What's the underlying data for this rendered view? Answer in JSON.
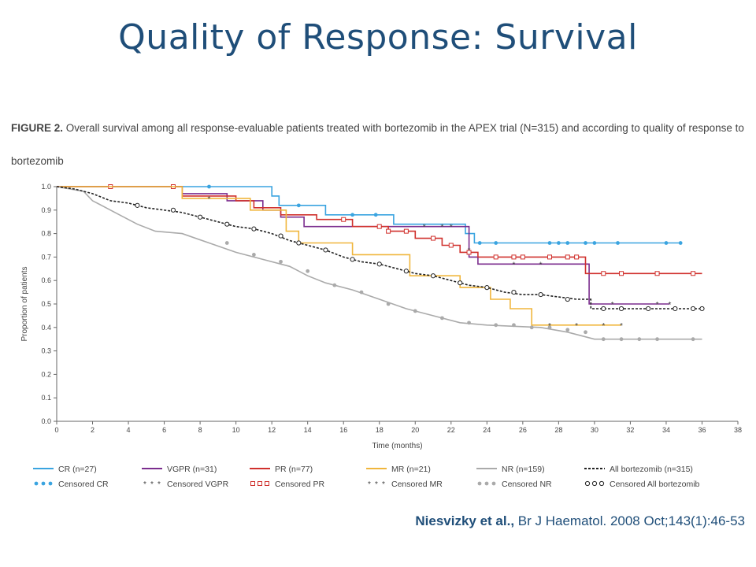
{
  "slide": {
    "title": "Quality of Response: Survival",
    "caption_label": "FIGURE 2.",
    "caption_text": "Overall survival among all response-evaluable patients treated with bortezomib in the APEX trial (N=315) and according to quality of response to bortezomib",
    "citation_authors": "Niesvizky et al.,",
    "citation_source": "Br J Haematol. 2008 Oct;143(1):46-53"
  },
  "chart_data": {
    "type": "line",
    "subtype": "kaplan-meier step",
    "xlabel": "Time (months)",
    "ylabel": "Proportion of patients",
    "xlim": [
      0,
      38
    ],
    "ylim": [
      0,
      1
    ],
    "xticks": [
      0,
      2,
      4,
      6,
      8,
      10,
      12,
      14,
      16,
      18,
      20,
      22,
      24,
      26,
      28,
      30,
      32,
      34,
      36,
      38
    ],
    "yticks": [
      0.0,
      0.1,
      0.2,
      0.3,
      0.4,
      0.5,
      0.6,
      0.7,
      0.8,
      0.9,
      1.0
    ],
    "grid": false,
    "legend_position": "bottom",
    "series": [
      {
        "name": "CR (n=27)",
        "censored_name": "Censored CR",
        "color": "#3aa4e0",
        "dash": "solid",
        "marker": "dot",
        "points": [
          [
            0,
            1.0
          ],
          [
            12.0,
            1.0
          ],
          [
            12.0,
            0.96
          ],
          [
            12.4,
            0.96
          ],
          [
            12.4,
            0.92
          ],
          [
            15.0,
            0.92
          ],
          [
            15.0,
            0.88
          ],
          [
            18.8,
            0.88
          ],
          [
            18.8,
            0.84
          ],
          [
            22.8,
            0.84
          ],
          [
            22.8,
            0.8
          ],
          [
            23.3,
            0.8
          ],
          [
            23.3,
            0.76
          ],
          [
            34.8,
            0.76
          ]
        ],
        "censored": [
          [
            3,
            1.0
          ],
          [
            8.5,
            1.0
          ],
          [
            13.5,
            0.92
          ],
          [
            16.5,
            0.88
          ],
          [
            17.8,
            0.88
          ],
          [
            23.6,
            0.76
          ],
          [
            24.5,
            0.76
          ],
          [
            27.5,
            0.76
          ],
          [
            28.0,
            0.76
          ],
          [
            28.5,
            0.76
          ],
          [
            29.5,
            0.76
          ],
          [
            30.0,
            0.76
          ],
          [
            31.3,
            0.76
          ],
          [
            34.0,
            0.76
          ],
          [
            34.8,
            0.76
          ]
        ]
      },
      {
        "name": "VGPR (n=31)",
        "censored_name": "Censored VGPR",
        "color": "#7b2d8e",
        "dash": "solid",
        "marker": "star",
        "points": [
          [
            0,
            1.0
          ],
          [
            7.0,
            1.0
          ],
          [
            7.0,
            0.97
          ],
          [
            9.5,
            0.97
          ],
          [
            9.5,
            0.94
          ],
          [
            11.5,
            0.94
          ],
          [
            11.5,
            0.9
          ],
          [
            12.5,
            0.9
          ],
          [
            12.5,
            0.87
          ],
          [
            13.8,
            0.87
          ],
          [
            13.8,
            0.83
          ],
          [
            23.0,
            0.83
          ],
          [
            23.0,
            0.7
          ],
          [
            23.5,
            0.7
          ],
          [
            23.5,
            0.67
          ],
          [
            29.7,
            0.67
          ],
          [
            29.7,
            0.5
          ],
          [
            34.2,
            0.5
          ]
        ],
        "censored": [
          [
            3,
            1.0
          ],
          [
            20.5,
            0.83
          ],
          [
            21.5,
            0.83
          ],
          [
            22.0,
            0.83
          ],
          [
            23.0,
            0.73
          ],
          [
            25.5,
            0.67
          ],
          [
            27.0,
            0.67
          ],
          [
            31.0,
            0.5
          ],
          [
            33.5,
            0.5
          ],
          [
            34.2,
            0.5
          ]
        ]
      },
      {
        "name": "PR (n=77)",
        "censored_name": "Censored PR",
        "color": "#d0312d",
        "dash": "solid",
        "marker": "square",
        "points": [
          [
            0,
            1.0
          ],
          [
            7.0,
            1.0
          ],
          [
            7.0,
            0.96
          ],
          [
            10.0,
            0.96
          ],
          [
            10.0,
            0.94
          ],
          [
            11.0,
            0.94
          ],
          [
            11.0,
            0.91
          ],
          [
            12.5,
            0.91
          ],
          [
            12.5,
            0.88
          ],
          [
            14.5,
            0.88
          ],
          [
            14.5,
            0.86
          ],
          [
            16.5,
            0.86
          ],
          [
            16.5,
            0.83
          ],
          [
            18.5,
            0.83
          ],
          [
            18.5,
            0.81
          ],
          [
            20.0,
            0.81
          ],
          [
            20.0,
            0.78
          ],
          [
            21.5,
            0.78
          ],
          [
            21.5,
            0.75
          ],
          [
            22.5,
            0.75
          ],
          [
            22.5,
            0.72
          ],
          [
            23.5,
            0.72
          ],
          [
            23.5,
            0.7
          ],
          [
            29.5,
            0.7
          ],
          [
            29.5,
            0.63
          ],
          [
            36.0,
            0.63
          ]
        ],
        "censored": [
          [
            3,
            1.0
          ],
          [
            6.5,
            1.0
          ],
          [
            16.0,
            0.86
          ],
          [
            18.0,
            0.83
          ],
          [
            18.5,
            0.81
          ],
          [
            19.5,
            0.81
          ],
          [
            21.0,
            0.78
          ],
          [
            22.0,
            0.75
          ],
          [
            23.0,
            0.72
          ],
          [
            24.5,
            0.7
          ],
          [
            25.5,
            0.7
          ],
          [
            26.0,
            0.7
          ],
          [
            27.5,
            0.7
          ],
          [
            28.5,
            0.7
          ],
          [
            29.0,
            0.7
          ],
          [
            30.5,
            0.63
          ],
          [
            31.5,
            0.63
          ],
          [
            33.5,
            0.63
          ],
          [
            35.5,
            0.63
          ]
        ]
      },
      {
        "name": "MR (n=21)",
        "censored_name": "Censored MR",
        "color": "#f0b63c",
        "dash": "solid",
        "marker": "star",
        "points": [
          [
            0,
            1.0
          ],
          [
            7.0,
            1.0
          ],
          [
            7.0,
            0.95
          ],
          [
            10.8,
            0.95
          ],
          [
            10.8,
            0.9
          ],
          [
            12.8,
            0.9
          ],
          [
            12.8,
            0.81
          ],
          [
            13.5,
            0.81
          ],
          [
            13.5,
            0.76
          ],
          [
            16.5,
            0.76
          ],
          [
            16.5,
            0.71
          ],
          [
            19.7,
            0.71
          ],
          [
            19.7,
            0.62
          ],
          [
            22.5,
            0.62
          ],
          [
            22.5,
            0.57
          ],
          [
            24.2,
            0.57
          ],
          [
            24.2,
            0.52
          ],
          [
            25.3,
            0.52
          ],
          [
            25.3,
            0.48
          ],
          [
            26.5,
            0.48
          ],
          [
            26.5,
            0.41
          ],
          [
            31.5,
            0.41
          ]
        ],
        "censored": [
          [
            8.5,
            0.95
          ],
          [
            27.5,
            0.41
          ],
          [
            29.0,
            0.41
          ],
          [
            30.5,
            0.41
          ],
          [
            31.5,
            0.41
          ]
        ]
      },
      {
        "name": "NR (n=159)",
        "censored_name": "Censored NR",
        "color": "#aaaaaa",
        "dash": "solid",
        "marker": "dot",
        "points": [
          [
            0,
            1.0
          ],
          [
            1.5,
            0.98
          ],
          [
            2.0,
            0.94
          ],
          [
            2.5,
            0.92
          ],
          [
            3.5,
            0.88
          ],
          [
            4.5,
            0.84
          ],
          [
            5.5,
            0.81
          ],
          [
            7.0,
            0.8
          ],
          [
            8.5,
            0.76
          ],
          [
            10.0,
            0.72
          ],
          [
            11.5,
            0.69
          ],
          [
            13.0,
            0.66
          ],
          [
            14.0,
            0.62
          ],
          [
            15.0,
            0.59
          ],
          [
            16.5,
            0.56
          ],
          [
            18.0,
            0.52
          ],
          [
            19.5,
            0.48
          ],
          [
            21.0,
            0.45
          ],
          [
            22.5,
            0.42
          ],
          [
            24.0,
            0.41
          ],
          [
            27.0,
            0.4
          ],
          [
            28.5,
            0.38
          ],
          [
            30.0,
            0.35
          ],
          [
            36.0,
            0.35
          ]
        ],
        "censored": [
          [
            9.5,
            0.76
          ],
          [
            11.0,
            0.71
          ],
          [
            12.5,
            0.68
          ],
          [
            14.0,
            0.64
          ],
          [
            15.5,
            0.58
          ],
          [
            17.0,
            0.55
          ],
          [
            18.5,
            0.5
          ],
          [
            20.0,
            0.47
          ],
          [
            21.5,
            0.44
          ],
          [
            23.0,
            0.42
          ],
          [
            24.5,
            0.41
          ],
          [
            25.5,
            0.41
          ],
          [
            26.5,
            0.4
          ],
          [
            27.5,
            0.4
          ],
          [
            28.5,
            0.39
          ],
          [
            29.5,
            0.38
          ],
          [
            30.5,
            0.35
          ],
          [
            31.5,
            0.35
          ],
          [
            32.5,
            0.35
          ],
          [
            33.5,
            0.35
          ],
          [
            35.5,
            0.35
          ]
        ]
      },
      {
        "name": "All bortezomib (n=315)",
        "censored_name": "Censored All bortezomib",
        "color": "#222222",
        "dash": "dashed",
        "marker": "ring",
        "points": [
          [
            0,
            1.0
          ],
          [
            1.0,
            0.99
          ],
          [
            2.0,
            0.97
          ],
          [
            3.0,
            0.94
          ],
          [
            4.0,
            0.93
          ],
          [
            5.0,
            0.91
          ],
          [
            6.0,
            0.9
          ],
          [
            7.0,
            0.89
          ],
          [
            8.0,
            0.87
          ],
          [
            9.0,
            0.85
          ],
          [
            10.0,
            0.83
          ],
          [
            11.0,
            0.82
          ],
          [
            12.0,
            0.8
          ],
          [
            13.0,
            0.77
          ],
          [
            14.0,
            0.75
          ],
          [
            15.0,
            0.73
          ],
          [
            16.0,
            0.7
          ],
          [
            17.0,
            0.68
          ],
          [
            18.0,
            0.67
          ],
          [
            19.0,
            0.65
          ],
          [
            20.0,
            0.63
          ],
          [
            21.0,
            0.62
          ],
          [
            22.0,
            0.6
          ],
          [
            23.0,
            0.58
          ],
          [
            24.0,
            0.57
          ],
          [
            25.0,
            0.55
          ],
          [
            26.0,
            0.54
          ],
          [
            27.0,
            0.54
          ],
          [
            28.0,
            0.53
          ],
          [
            29.0,
            0.52
          ],
          [
            29.8,
            0.52
          ],
          [
            29.8,
            0.48
          ],
          [
            36.0,
            0.48
          ]
        ],
        "censored": [
          [
            4.5,
            0.92
          ],
          [
            6.5,
            0.9
          ],
          [
            8.0,
            0.87
          ],
          [
            9.5,
            0.84
          ],
          [
            11.0,
            0.82
          ],
          [
            12.5,
            0.79
          ],
          [
            13.5,
            0.76
          ],
          [
            15.0,
            0.73
          ],
          [
            16.5,
            0.69
          ],
          [
            18.0,
            0.67
          ],
          [
            19.5,
            0.64
          ],
          [
            21.0,
            0.62
          ],
          [
            22.5,
            0.59
          ],
          [
            24.0,
            0.57
          ],
          [
            25.5,
            0.55
          ],
          [
            27.0,
            0.54
          ],
          [
            28.5,
            0.52
          ],
          [
            30.5,
            0.48
          ],
          [
            31.5,
            0.48
          ],
          [
            33.0,
            0.48
          ],
          [
            34.5,
            0.48
          ],
          [
            35.5,
            0.48
          ],
          [
            36.0,
            0.48
          ]
        ]
      }
    ]
  }
}
